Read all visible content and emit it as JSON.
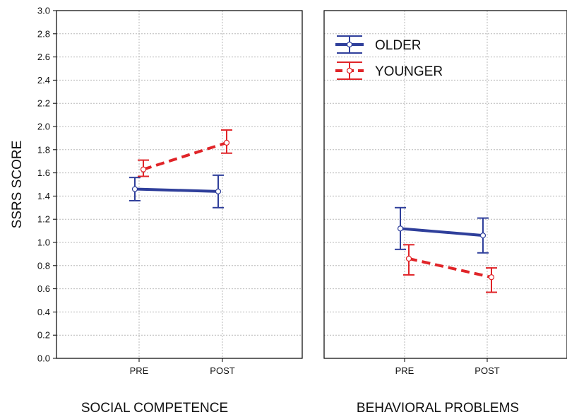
{
  "chart_data": {
    "type": "line",
    "ylabel": "SSRS SCORE",
    "ylim": [
      0,
      3
    ],
    "ytick_step": 0.2,
    "yticks": [
      "0.0",
      "0.2",
      "0.4",
      "0.6",
      "0.8",
      "1.0",
      "1.2",
      "1.4",
      "1.6",
      "1.8",
      "2.0",
      "2.2",
      "2.4",
      "2.6",
      "2.8",
      "3.0"
    ],
    "grid": true,
    "legend_position": "top-left of right panel",
    "legend": [
      {
        "name": "OLDER",
        "color": "#2f3f9b",
        "style": "solid"
      },
      {
        "name": "YOUNGER",
        "color": "#e02428",
        "style": "dashed"
      }
    ],
    "panels": [
      {
        "title": "SOCIAL COMPETENCE",
        "categories": [
          "PRE",
          "POST"
        ],
        "series": [
          {
            "name": "OLDER",
            "values": [
              1.46,
              1.44
            ],
            "lower": [
              1.36,
              1.3
            ],
            "upper": [
              1.56,
              1.58
            ]
          },
          {
            "name": "YOUNGER",
            "values": [
              1.63,
              1.86
            ],
            "lower": [
              1.57,
              1.77
            ],
            "upper": [
              1.71,
              1.97
            ]
          }
        ]
      },
      {
        "title": "BEHAVIORAL PROBLEMS",
        "categories": [
          "PRE",
          "POST"
        ],
        "series": [
          {
            "name": "OLDER",
            "values": [
              1.12,
              1.06
            ],
            "lower": [
              0.94,
              0.91
            ],
            "upper": [
              1.3,
              1.21
            ]
          },
          {
            "name": "YOUNGER",
            "values": [
              0.86,
              0.7
            ],
            "lower": [
              0.72,
              0.57
            ],
            "upper": [
              0.98,
              0.78
            ]
          }
        ]
      }
    ]
  }
}
